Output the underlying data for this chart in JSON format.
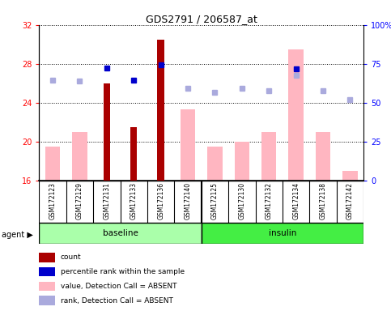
{
  "title": "GDS2791 / 206587_at",
  "samples": [
    "GSM172123",
    "GSM172129",
    "GSM172131",
    "GSM172133",
    "GSM172136",
    "GSM172140",
    "GSM172125",
    "GSM172130",
    "GSM172132",
    "GSM172134",
    "GSM172138",
    "GSM172142"
  ],
  "groups": [
    "baseline",
    "baseline",
    "baseline",
    "baseline",
    "baseline",
    "baseline",
    "insulin",
    "insulin",
    "insulin",
    "insulin",
    "insulin",
    "insulin"
  ],
  "value_absent": [
    19.5,
    21.0,
    null,
    null,
    null,
    23.3,
    19.5,
    20.0,
    21.0,
    29.5,
    21.0,
    17.0
  ],
  "rank_absent": [
    26.3,
    26.2,
    null,
    null,
    null,
    25.5,
    25.1,
    25.5,
    25.2,
    26.8,
    25.2,
    24.3
  ],
  "count": [
    null,
    null,
    26.0,
    21.5,
    30.5,
    null,
    null,
    null,
    null,
    null,
    null,
    null
  ],
  "percentile": [
    null,
    null,
    27.6,
    26.3,
    27.9,
    null,
    null,
    null,
    null,
    27.5,
    null,
    null
  ],
  "ylim_left": [
    16,
    32
  ],
  "ylim_right": [
    0,
    100
  ],
  "yticks_left": [
    16,
    20,
    24,
    28,
    32
  ],
  "yticks_right": [
    0,
    25,
    50,
    75,
    100
  ],
  "baseline_color": "#aaffaa",
  "insulin_color": "#44ee44",
  "bar_dark_red": "#AA0000",
  "bar_pink": "#FFB6C1",
  "dot_blue": "#0000CC",
  "dot_lightblue": "#AAAADD",
  "sample_bg": "#CCCCCC"
}
